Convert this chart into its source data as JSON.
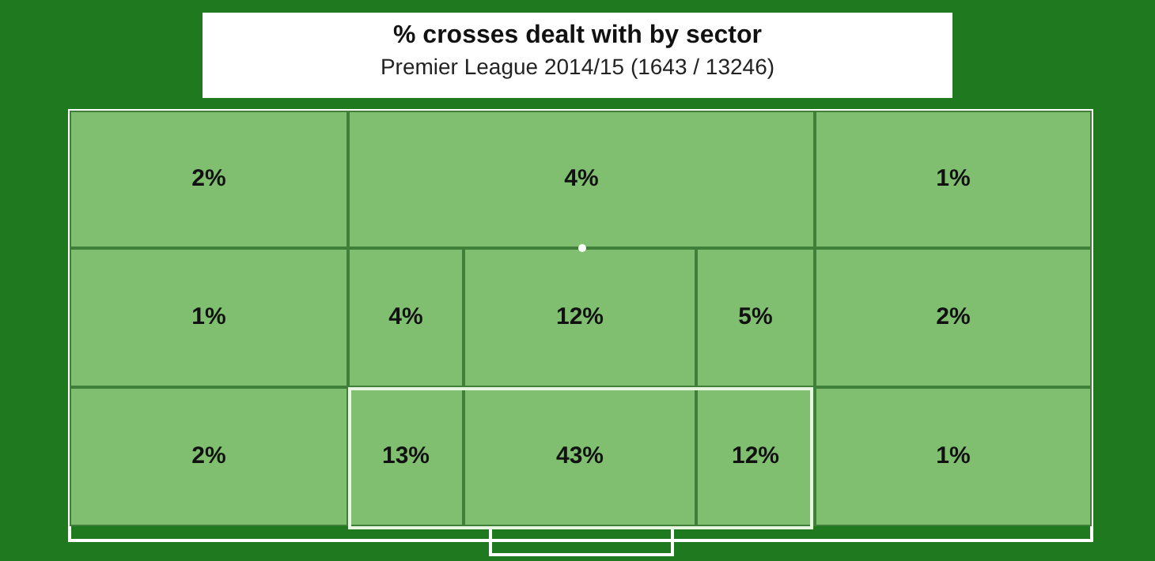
{
  "chart_data": {
    "type": "other",
    "title": "% crosses dealt with by sector",
    "subtitle": "Premier League 2014/15 (1643 / 13246)",
    "categories": [
      null,
      null,
      null,
      null,
      null,
      null,
      null,
      null,
      null,
      null,
      null,
      null,
      null
    ],
    "values": [
      2,
      4,
      1,
      1,
      4,
      12,
      5,
      2,
      2,
      13,
      43,
      12,
      1
    ],
    "value_labels": [
      "2%",
      "4%",
      "1%",
      "1%",
      "4%",
      "12%",
      "5%",
      "2%",
      "2%",
      "13%",
      "43%",
      "12%",
      "1%"
    ],
    "color": "#7fbf6f"
  }
}
